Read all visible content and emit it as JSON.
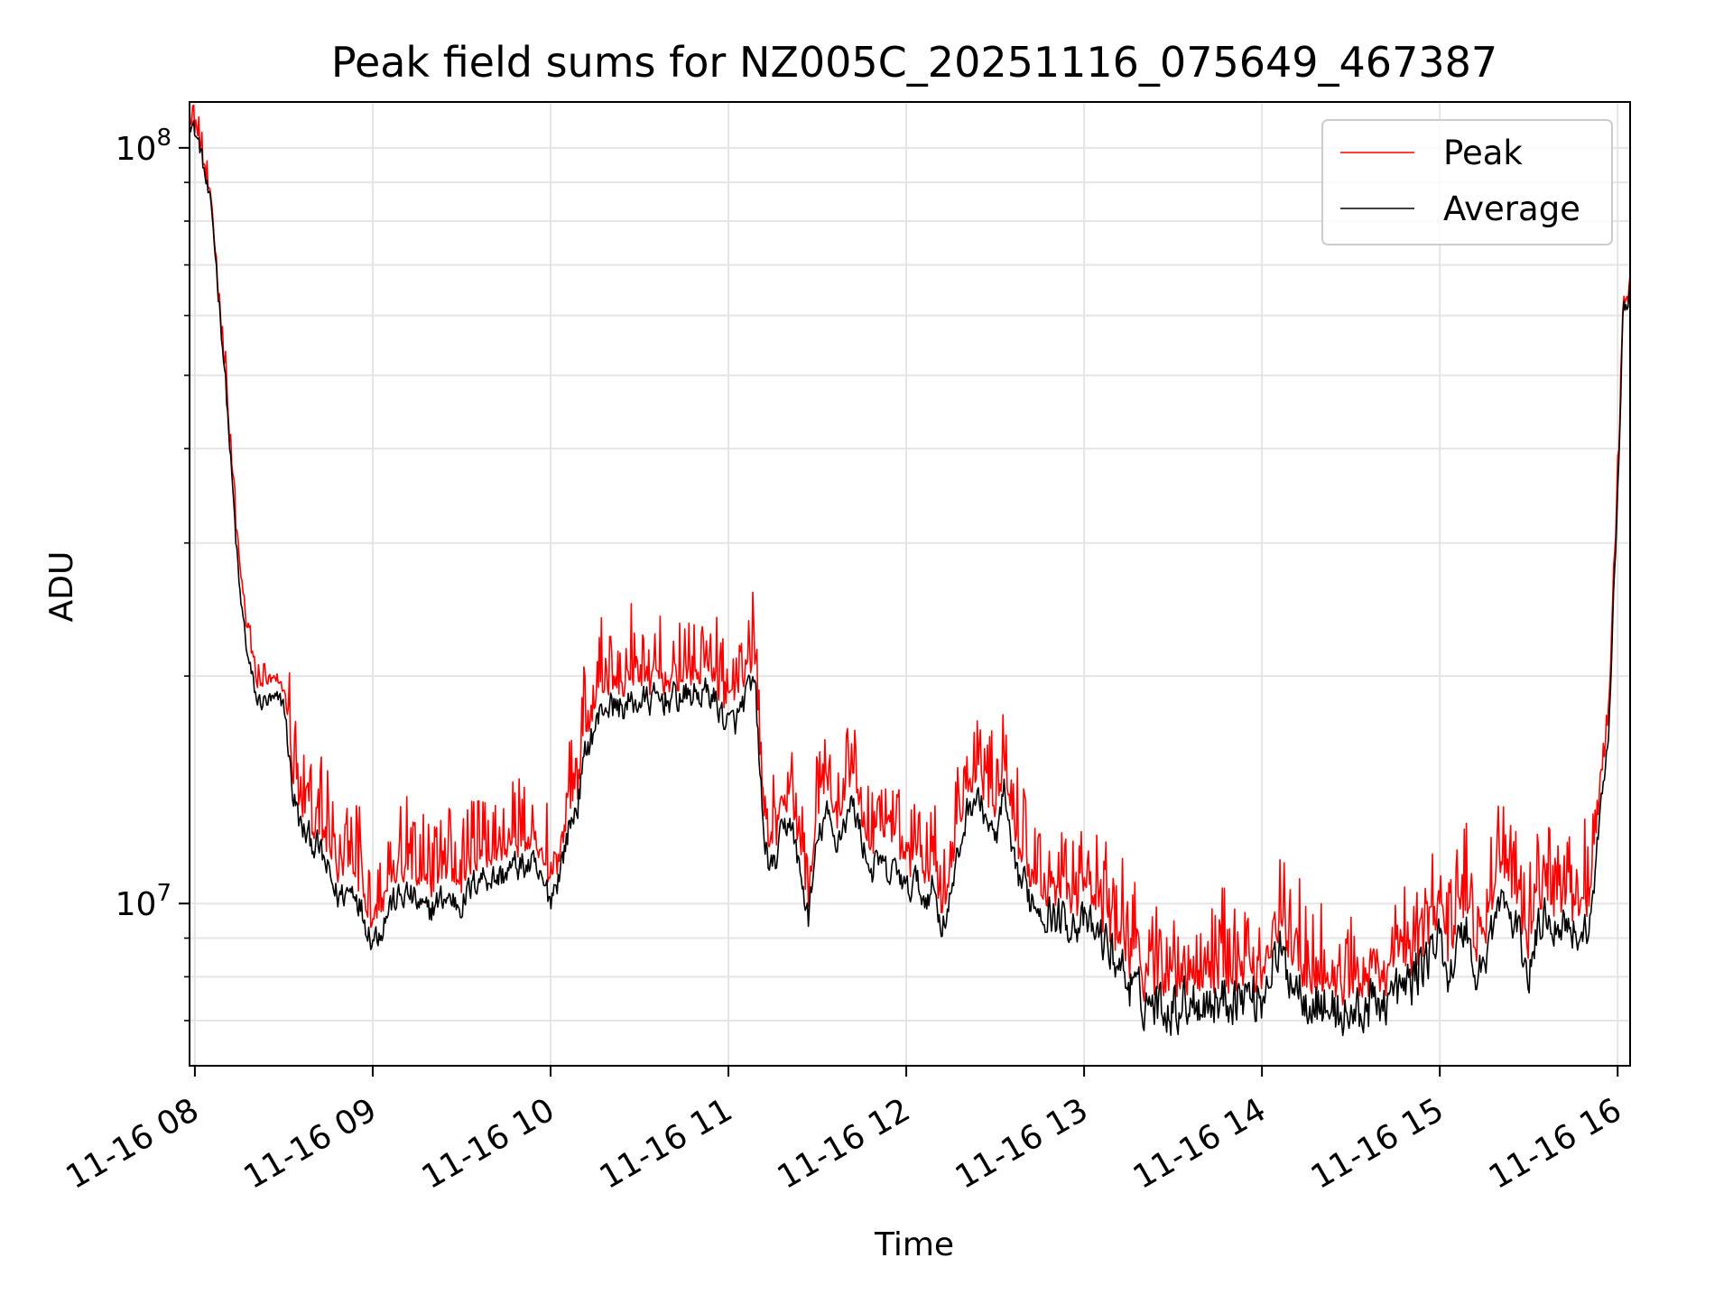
{
  "chart_data": {
    "type": "line",
    "title": "Peak field sums for NZ005C_20251116_075649_467387",
    "xlabel": "Time",
    "ylabel": "ADU",
    "yscale": "log",
    "ylim": [
      6100000,
      115000000
    ],
    "xlim": [
      7.97,
      16.07
    ],
    "grid": true,
    "legend_position": "upper right",
    "x_ticks": [
      {
        "value": 8,
        "label": "11-16 08"
      },
      {
        "value": 9,
        "label": "11-16 09"
      },
      {
        "value": 10,
        "label": "11-16 10"
      },
      {
        "value": 11,
        "label": "11-16 11"
      },
      {
        "value": 12,
        "label": "11-16 12"
      },
      {
        "value": 13,
        "label": "11-16 13"
      },
      {
        "value": 14,
        "label": "11-16 14"
      },
      {
        "value": 15,
        "label": "11-16 15"
      },
      {
        "value": 16,
        "label": "11-16 16"
      }
    ],
    "y_major_ticks": [
      {
        "value": 10000000,
        "base": "10",
        "exp": "7"
      },
      {
        "value": 100000000,
        "base": "10",
        "exp": "8"
      }
    ],
    "y_minor_ticks": [
      7000000,
      8000000,
      9000000,
      20000000,
      30000000,
      40000000,
      50000000,
      60000000,
      70000000,
      80000000,
      90000000
    ],
    "x_units": "hours (2025-11-16)",
    "series": [
      {
        "name": "Average",
        "color": "#000000",
        "noise_amplitude": 0.035,
        "x": [
          7.97,
          8.03,
          8.1,
          8.17,
          8.22,
          8.25,
          8.3,
          8.35,
          8.4,
          8.5,
          8.55,
          8.6,
          8.7,
          8.8,
          8.9,
          8.95,
          9.0,
          9.05,
          9.1,
          9.2,
          9.3,
          9.4,
          9.5,
          9.6,
          9.7,
          9.8,
          9.9,
          9.95,
          10.0,
          10.05,
          10.1,
          10.15,
          10.2,
          10.3,
          10.4,
          10.5,
          10.7,
          10.9,
          11.0,
          11.05,
          11.1,
          11.15,
          11.2,
          11.25,
          11.3,
          11.35,
          11.4,
          11.45,
          11.5,
          11.55,
          11.6,
          11.65,
          11.7,
          11.75,
          11.8,
          11.85,
          11.9,
          11.95,
          12.0,
          12.05,
          12.1,
          12.15,
          12.2,
          12.25,
          12.3,
          12.35,
          12.4,
          12.45,
          12.5,
          12.55,
          12.6,
          12.7,
          12.8,
          12.9,
          13.0,
          13.1,
          13.2,
          13.3,
          13.4,
          13.5,
          13.6,
          13.7,
          13.8,
          13.9,
          14.0,
          14.05,
          14.1,
          14.2,
          14.3,
          14.4,
          14.5,
          14.6,
          14.7,
          14.8,
          14.9,
          15.0,
          15.05,
          15.1,
          15.15,
          15.2,
          15.25,
          15.3,
          15.35,
          15.4,
          15.45,
          15.5,
          15.55,
          15.6,
          15.65,
          15.7,
          15.75,
          15.8,
          15.85,
          15.9,
          15.95,
          16.0,
          16.03,
          16.07
        ],
        "y": [
          110000000,
          100000000,
          80000000,
          50000000,
          33000000,
          26000000,
          21000000,
          18500000,
          18500000,
          18500000,
          14000000,
          12500000,
          11800000,
          10200000,
          10500000,
          9600000,
          9000000,
          9300000,
          10000000,
          10300000,
          9700000,
          10200000,
          10000000,
          10900000,
          10800000,
          11200000,
          11200000,
          10600000,
          10200000,
          11000000,
          12500000,
          13500000,
          16000000,
          18300000,
          18200000,
          18500000,
          18700000,
          19000000,
          17200000,
          17500000,
          18900000,
          19500000,
          12000000,
          11000000,
          12300000,
          13000000,
          11000000,
          9600000,
          12000000,
          13200000,
          12000000,
          12800000,
          13600000,
          12200000,
          11000000,
          11400000,
          10800000,
          11200000,
          10300000,
          10800000,
          10100000,
          10600000,
          9300000,
          10200000,
          11800000,
          13500000,
          13800000,
          13000000,
          12000000,
          14000000,
          11200000,
          10200000,
          9700000,
          9500000,
          9400000,
          9000000,
          8300000,
          7500000,
          7400000,
          7300000,
          7500000,
          7400000,
          7500000,
          7600000,
          7500000,
          8300000,
          8500000,
          7800000,
          7400000,
          7200000,
          7100000,
          7300000,
          7500000,
          7700000,
          8300000,
          9000000,
          8000000,
          8800000,
          9400000,
          7900000,
          8400000,
          9400000,
          10200000,
          9500000,
          9000000,
          8000000,
          9200000,
          9800000,
          9300000,
          9500000,
          9300000,
          9000000,
          9500000,
          13000000,
          17000000,
          35000000,
          60000000,
          65000000
        ],
        "noise_scale": [
          0.02,
          0.02,
          0.02,
          0.02,
          0.02,
          0.02,
          0.02,
          0.02,
          0.02,
          0.02,
          0.03,
          0.03,
          0.03,
          0.03,
          0.03,
          0.03,
          0.03,
          0.03,
          0.03,
          0.03,
          0.03,
          0.03,
          0.03,
          0.03,
          0.03,
          0.03,
          0.03,
          0.03,
          0.03,
          0.03,
          0.03,
          0.03,
          0.03,
          0.03,
          0.03,
          0.03,
          0.03,
          0.03,
          0.03,
          0.03,
          0.03,
          0.03,
          0.03,
          0.03,
          0.03,
          0.03,
          0.03,
          0.03,
          0.03,
          0.03,
          0.03,
          0.03,
          0.03,
          0.03,
          0.03,
          0.03,
          0.03,
          0.03,
          0.03,
          0.03,
          0.03,
          0.03,
          0.03,
          0.03,
          0.03,
          0.03,
          0.03,
          0.03,
          0.03,
          0.03,
          0.03,
          0.04,
          0.04,
          0.04,
          0.04,
          0.04,
          0.05,
          0.05,
          0.05,
          0.05,
          0.05,
          0.05,
          0.05,
          0.05,
          0.05,
          0.05,
          0.05,
          0.05,
          0.05,
          0.05,
          0.05,
          0.05,
          0.05,
          0.05,
          0.05,
          0.04,
          0.04,
          0.04,
          0.04,
          0.04,
          0.04,
          0.04,
          0.04,
          0.04,
          0.04,
          0.04,
          0.04,
          0.04,
          0.04,
          0.04,
          0.04,
          0.04,
          0.03,
          0.02,
          0.02,
          0.02,
          0.02,
          0.02
        ]
      },
      {
        "name": "Peak",
        "color": "#ff0000",
        "offset_ratio_note": "Peak tracks Average with positive excursions",
        "x": [
          7.97,
          8.03,
          8.1,
          8.17,
          8.22,
          8.25,
          8.3,
          8.35,
          8.4,
          8.5,
          8.55,
          8.6,
          8.7,
          8.8,
          8.9,
          8.95,
          9.0,
          9.05,
          9.1,
          9.2,
          9.3,
          9.4,
          9.5,
          9.6,
          9.7,
          9.8,
          9.9,
          9.95,
          10.0,
          10.05,
          10.1,
          10.15,
          10.2,
          10.3,
          10.4,
          10.5,
          10.7,
          10.9,
          11.0,
          11.05,
          11.1,
          11.15,
          11.2,
          11.25,
          11.3,
          11.35,
          11.4,
          11.45,
          11.5,
          11.55,
          11.6,
          11.65,
          11.7,
          11.75,
          11.8,
          11.85,
          11.9,
          11.95,
          12.0,
          12.05,
          12.1,
          12.15,
          12.2,
          12.25,
          12.3,
          12.35,
          12.4,
          12.45,
          12.5,
          12.55,
          12.6,
          12.7,
          12.8,
          12.9,
          13.0,
          13.1,
          13.2,
          13.3,
          13.4,
          13.5,
          13.6,
          13.7,
          13.8,
          13.9,
          14.0,
          14.05,
          14.1,
          14.2,
          14.3,
          14.4,
          14.5,
          14.6,
          14.7,
          14.8,
          14.9,
          15.0,
          15.05,
          15.1,
          15.15,
          15.2,
          15.25,
          15.3,
          15.35,
          15.4,
          15.45,
          15.5,
          15.55,
          15.6,
          15.65,
          15.7,
          15.75,
          15.8,
          15.85,
          15.9,
          15.95,
          16.0,
          16.03,
          16.07
        ],
        "y": [
          111000000,
          101000000,
          81000000,
          51000000,
          34000000,
          28000000,
          22500000,
          19500000,
          19800000,
          19000000,
          15000000,
          13300000,
          12500000,
          11000000,
          11300000,
          10400000,
          9600000,
          10000000,
          10900000,
          11100000,
          10400000,
          11000000,
          10800000,
          11700000,
          11600000,
          12000000,
          12000000,
          11300000,
          10800000,
          11700000,
          13300000,
          14300000,
          17200000,
          19600000,
          19500000,
          19700000,
          19900000,
          20200000,
          18400000,
          18600000,
          20000000,
          20500000,
          12900000,
          11800000,
          13200000,
          14000000,
          11800000,
          10200000,
          12900000,
          14200000,
          12900000,
          13800000,
          14700000,
          13100000,
          11800000,
          12300000,
          11600000,
          12100000,
          11100000,
          11700000,
          10900000,
          11400000,
          10000000,
          11000000,
          12700000,
          14500000,
          14800000,
          14000000,
          12900000,
          15000000,
          12200000,
          11000000,
          10500000,
          10300000,
          10200000,
          9800000,
          9000000,
          8200000,
          8100000,
          8000000,
          8200000,
          8100000,
          8200000,
          8300000,
          8200000,
          9100000,
          9300000,
          8500000,
          8100000,
          7900000,
          7800000,
          8000000,
          8200000,
          8400000,
          9100000,
          9800000,
          8800000,
          9600000,
          10300000,
          8600000,
          9200000,
          10300000,
          11100000,
          10400000,
          9800000,
          8800000,
          10100000,
          10700000,
          10200000,
          10300000,
          10100000,
          9800000,
          10300000,
          14000000,
          18200000,
          36500000,
          61000000,
          66000000
        ],
        "spike_amplitude": 0.09
      }
    ]
  }
}
